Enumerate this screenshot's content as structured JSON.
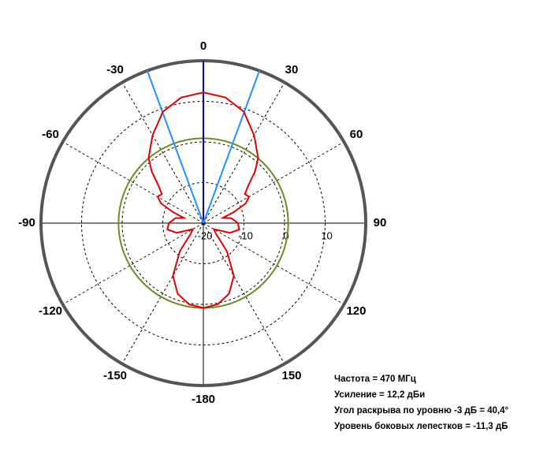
{
  "chart_data": {
    "type": "polar",
    "rlim": [
      -20,
      20
    ],
    "rticks": [
      -20,
      -10,
      0,
      10
    ],
    "angle_ticks": [
      0,
      30,
      60,
      90,
      120,
      150,
      -180,
      -150,
      -120,
      -90,
      -60,
      -30
    ],
    "series": [
      {
        "color": "#e00000",
        "theta": [
          -180,
          -170,
          -160,
          -150,
          -140,
          -130,
          -120,
          -110,
          -100,
          -90,
          -80,
          -75,
          -70,
          -65,
          -60,
          -55,
          -50,
          -45,
          -40,
          -30,
          -20,
          -10,
          0,
          10,
          20,
          30,
          40,
          45,
          50,
          55,
          60,
          65,
          70,
          75,
          80,
          90,
          100,
          110,
          120,
          130,
          140,
          150,
          160,
          170,
          180
        ],
        "values": [
          0.9,
          0.3,
          -1.5,
          -5,
          -11,
          -16,
          -17,
          -13,
          -11,
          -11.5,
          -13,
          -15,
          -12,
          -8.5,
          -7,
          -7.5,
          -5.5,
          -2,
          1,
          5,
          9.2,
          11.4,
          12.2,
          11.4,
          9.2,
          5,
          1,
          -2,
          -5.5,
          -7.5,
          -7,
          -8.5,
          -12,
          -15,
          -13,
          -11.5,
          -11,
          -13,
          -17,
          -16,
          -11,
          -5,
          -1.5,
          0.3,
          0.9
        ]
      }
    ],
    "reference_circle": {
      "value": 0.9,
      "color": "#6b8e23"
    },
    "beam_lines": [
      {
        "angle": 0,
        "color": "#0000c8"
      },
      {
        "angle": -20.2,
        "color": "#1e90ff"
      },
      {
        "angle": 20.2,
        "color": "#1e90ff"
      }
    ],
    "annotations": [
      "Частота = 470 МГц",
      "Усиление = 12,2 дБи",
      "Угол раскрыва по уровню -3 дБ = 40,4°",
      "Уровень боковых лепестков = -11,3 дБ"
    ]
  }
}
